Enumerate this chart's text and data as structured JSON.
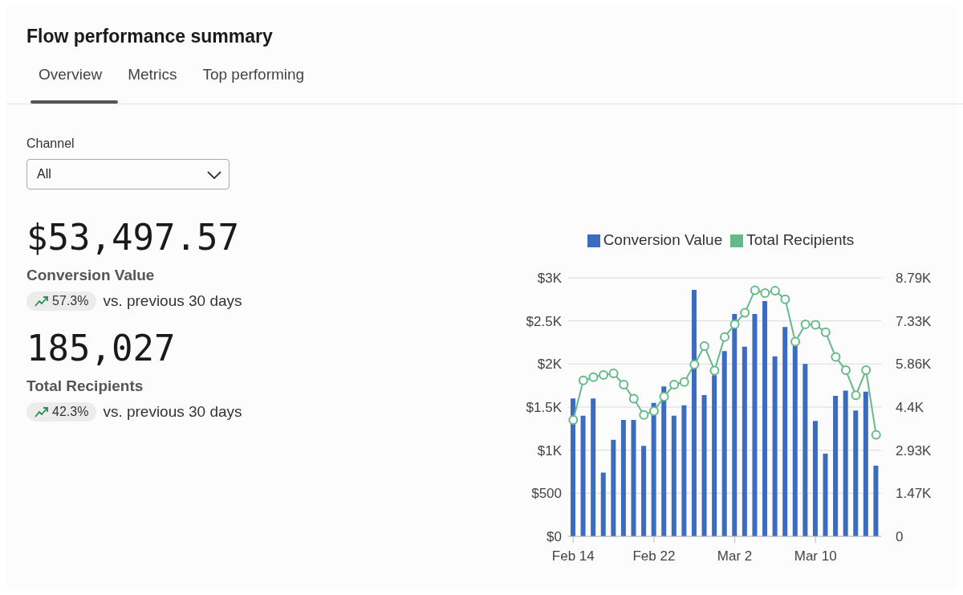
{
  "chart_data": [
    {
      "type": "other",
      "title": "Flow performance summary",
      "annotations": [
        "Overview",
        "Metrics",
        "Top performing",
        "Channel",
        "All",
        "$53,497.57",
        "Conversion Value",
        "57.3%",
        "vs. previous 30 days",
        "185,027",
        "Total Recipients",
        "42.3%",
        "vs. previous 30 days"
      ]
    },
    {
      "type": "bar",
      "categories": [
        "Feb 14",
        null,
        null,
        null,
        null,
        null,
        null,
        null,
        "Feb 22",
        null,
        null,
        null,
        null,
        null,
        null,
        null,
        "Mar 2",
        null,
        null,
        null,
        null,
        null,
        null,
        null,
        "Mar 10",
        null,
        null,
        null,
        null,
        null,
        null
      ],
      "series": [
        {
          "name": "Conversion Value",
          "type": "bar",
          "color": "#3b6cc0",
          "values": [
            1600,
            1400,
            1600,
            740,
            1120,
            1350,
            1350,
            1050,
            1550,
            1740,
            1400,
            1520,
            2860,
            1640,
            1870,
            2150,
            2580,
            2200,
            2580,
            2730,
            2090,
            2430,
            2210,
            2000,
            1340,
            960,
            1630,
            1690,
            1460,
            1680,
            820
          ]
        },
        {
          "name": "Total Recipients",
          "type": "line",
          "axis": "y2",
          "color": "#66b98a",
          "values": [
            3960,
            5300,
            5410,
            5490,
            5540,
            5160,
            4680,
            4130,
            4260,
            4750,
            5160,
            5250,
            5840,
            6470,
            5640,
            6780,
            7210,
            7600,
            8370,
            8270,
            8350,
            8060,
            6620,
            7210,
            7190,
            6940,
            6100,
            5650,
            4800,
            5650,
            3450
          ]
        }
      ],
      "ylim": [
        0,
        3000
      ],
      "yticks": [
        {
          "value": 0,
          "label": "$0"
        },
        {
          "value": 500,
          "label": "$500"
        },
        {
          "value": 1000,
          "label": "$1K"
        },
        {
          "value": 1500,
          "label": "$1.5K"
        },
        {
          "value": 2000,
          "label": "$2K"
        },
        {
          "value": 2500,
          "label": "$2.5K"
        },
        {
          "value": 3000,
          "label": "$3K"
        }
      ],
      "y2lim": [
        0,
        8790
      ],
      "y2ticks": [
        0,
        {
          "value": 1465,
          "label": "1.47K"
        },
        {
          "value": 2930,
          "label": "2.93K"
        },
        {
          "value": 4395,
          "label": "4.4K"
        },
        {
          "value": 5860,
          "label": "5.86K"
        },
        {
          "value": 7325,
          "label": "7.33K"
        },
        {
          "value": 8790,
          "label": "8.79K"
        }
      ],
      "grid": "y",
      "legend": "top",
      "marker": "circle",
      "line_style": "solid"
    }
  ]
}
